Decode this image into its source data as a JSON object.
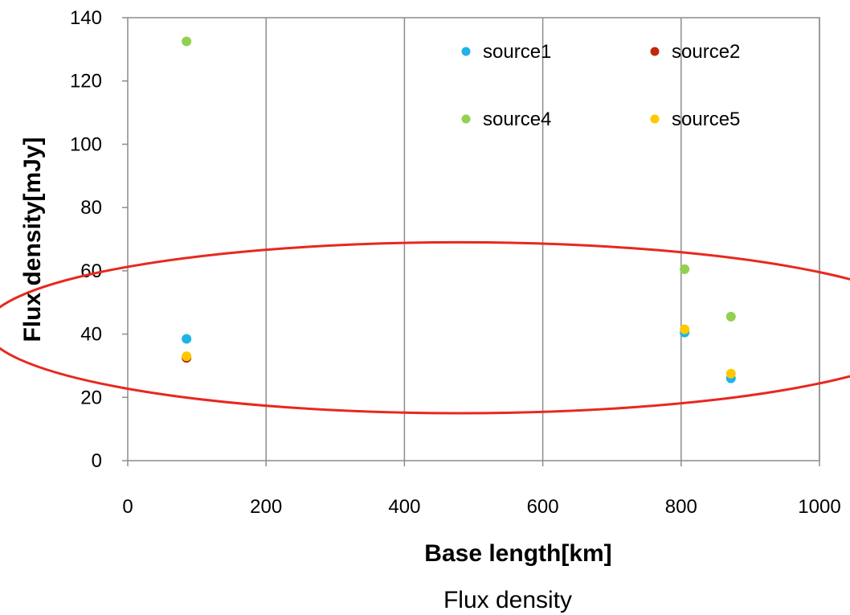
{
  "chart_data": {
    "type": "scatter",
    "xlabel": "Base length[km]",
    "ylabel": "Flux density[mJy]",
    "caption": "Flux density",
    "xlim": [
      0,
      1000
    ],
    "ylim": [
      0,
      140
    ],
    "xticks": [
      0,
      200,
      400,
      600,
      800,
      1000
    ],
    "yticks": [
      0,
      20,
      40,
      60,
      80,
      100,
      120,
      140
    ],
    "grid": "vertical",
    "legend_position": "top-right",
    "series": [
      {
        "name": "source1",
        "color": "#1EB4E6",
        "points": [
          [
            85,
            38.5
          ],
          [
            805,
            40.5
          ],
          [
            872,
            26
          ]
        ]
      },
      {
        "name": "source2",
        "color": "#C0280A",
        "points": [
          [
            85,
            32.5
          ]
        ]
      },
      {
        "name": "source4",
        "color": "#92D050",
        "points": [
          [
            85,
            132.5
          ],
          [
            805,
            60.5
          ],
          [
            872,
            45.5
          ]
        ]
      },
      {
        "name": "source5",
        "color": "#FFC800",
        "points": [
          [
            85,
            33
          ],
          [
            805,
            41.5
          ],
          [
            872,
            27.5
          ]
        ]
      }
    ],
    "annotations": [
      {
        "type": "ellipse",
        "color": "#E8281E",
        "center": [
          480,
          42
        ],
        "radius_x": 685,
        "radius_y": 27
      }
    ]
  }
}
